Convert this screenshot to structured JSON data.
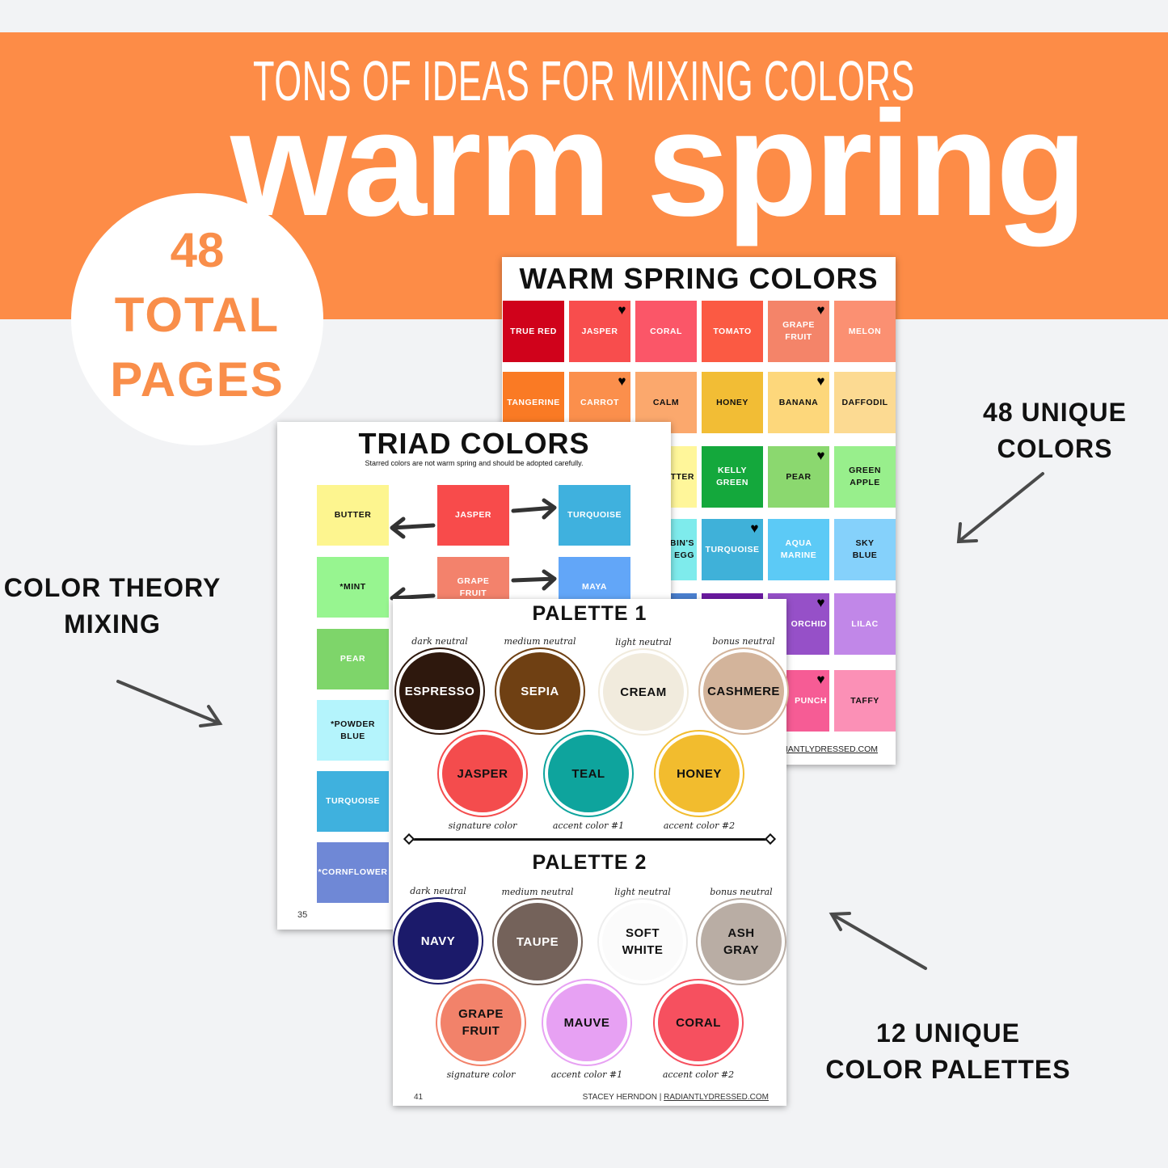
{
  "banner": {
    "tagline": "TONS OF IDEAS FOR MIXING COLORS",
    "headline": "warm spring",
    "color": "#fd8c47"
  },
  "badge": {
    "line1": "48",
    "line2": "TOTAL",
    "line3": "PAGES"
  },
  "annotations": {
    "unique_colors": "48 UNIQUE\nCOLORS",
    "theory": "COLOR THEORY\nMIXING",
    "palettes": "12 UNIQUE\nCOLOR PALETTES"
  },
  "colors_page": {
    "title": "WARM SPRING COLORS",
    "footer": "RADIANTLYDRESSED.COM",
    "cells": [
      {
        "label": "TRUE RED",
        "color": "#d0021b",
        "text": "#fff"
      },
      {
        "label": "JASPER",
        "color": "#f84d4d",
        "text": "#fff",
        "heart": true
      },
      {
        "label": "CORAL",
        "color": "#fb5668",
        "text": "#fff"
      },
      {
        "label": "TOMATO",
        "color": "#fb5a43",
        "text": "#fff"
      },
      {
        "label": "GRAPE\nFRUIT",
        "color": "#f48469",
        "text": "#fff",
        "heart": true
      },
      {
        "label": "MELON",
        "color": "#fb9072",
        "text": "#fff"
      },
      {
        "label": "TANGERINE",
        "color": "#fa7a24",
        "text": "#fff"
      },
      {
        "label": "CARROT",
        "color": "#fb8f4c",
        "text": "#fff",
        "heart": true
      },
      {
        "label": "CALM",
        "color": "#fba86d",
        "text": "#111"
      },
      {
        "label": "HONEY",
        "color": "#f2bd35",
        "text": "#111"
      },
      {
        "label": "BANANA",
        "color": "#fdd77b",
        "text": "#111",
        "heart": true
      },
      {
        "label": "DAFFODIL",
        "color": "#fcda92",
        "text": "#111"
      },
      {
        "label": "",
        "color": "#fbb07a",
        "text": "#111"
      },
      {
        "label": "",
        "color": "#fcd98a",
        "text": "#111"
      },
      {
        "label": "BUTTER",
        "color": "#fff69a",
        "text": "#111"
      },
      {
        "label": "KELLY\nGREEN",
        "color": "#14a83c",
        "text": "#fff"
      },
      {
        "label": "PEAR",
        "color": "#8bd86f",
        "text": "#111",
        "heart": true
      },
      {
        "label": "GREEN\nAPPLE",
        "color": "#98ef8c",
        "text": "#111"
      },
      {
        "label": "",
        "color": "#5ccaf6",
        "text": "#111"
      },
      {
        "label": "",
        "color": "#7ee0ec",
        "text": "#111"
      },
      {
        "label": "ROBIN'S\nEGG",
        "color": "#7eebec",
        "text": "#111"
      },
      {
        "label": "TURQUOISE",
        "color": "#3fb1d9",
        "text": "#fff",
        "heart": true
      },
      {
        "label": "AQUA\nMARINE",
        "color": "#5ccaf6",
        "text": "#fff"
      },
      {
        "label": "SKY\nBLUE",
        "color": "#85d1fb",
        "text": "#111"
      },
      {
        "label": "",
        "color": "#4a80d0",
        "text": "#fff"
      },
      {
        "label": "",
        "color": "#4a80d0",
        "text": "#fff"
      },
      {
        "label": "",
        "color": "#4a80d0",
        "text": "#fff"
      },
      {
        "label": "",
        "color": "#6a1aa0",
        "text": "#fff"
      },
      {
        "label": "ORCHID",
        "color": "#9650c8",
        "text": "#fff",
        "heart": true
      },
      {
        "label": "LILAC",
        "color": "#c187e8",
        "text": "#fff"
      },
      {
        "label": "",
        "color": "#f65c95",
        "text": "#fff"
      },
      {
        "label": "",
        "color": "#f65c95",
        "text": "#fff"
      },
      {
        "label": "",
        "color": "#f65c95",
        "text": "#fff"
      },
      {
        "label": "",
        "color": "#f65c95",
        "text": "#fff"
      },
      {
        "label": "PUNCH",
        "color": "#f65c95",
        "text": "#fff",
        "heart": true
      },
      {
        "label": "TAFFY",
        "color": "#fb90b6",
        "text": "#111"
      }
    ]
  },
  "triad_page": {
    "title": "TRIAD COLORS",
    "subtitle": "Starred colors are not warm spring and should be adopted carefully.",
    "page_number": "35",
    "cells": [
      {
        "label": "BUTTER",
        "color": "#fdf58f",
        "text": "#111",
        "col": 0,
        "row": 0
      },
      {
        "label": "JASPER",
        "color": "#f84b4b",
        "text": "#fff",
        "col": 1,
        "row": 0
      },
      {
        "label": "TURQUOISE",
        "color": "#3fb1de",
        "text": "#fff",
        "col": 2,
        "row": 0
      },
      {
        "label": "*MINT",
        "color": "#97f590",
        "text": "#111",
        "col": 0,
        "row": 1
      },
      {
        "label": "GRAPE\nFRUIT",
        "color": "#f3826c",
        "text": "#fff",
        "col": 1,
        "row": 1
      },
      {
        "label": "MAYA",
        "color": "#62a6f8",
        "text": "#fff",
        "col": 2,
        "row": 1
      },
      {
        "label": "PEAR",
        "color": "#7ed56a",
        "text": "#fff",
        "col": 0,
        "row": 2
      },
      {
        "label": "*POWDER\nBLUE",
        "color": "#b4f4fc",
        "text": "#111",
        "col": 0,
        "row": 3
      },
      {
        "label": "TURQUOISE",
        "color": "#3fb1de",
        "text": "#fff",
        "col": 0,
        "row": 4
      },
      {
        "label": "*CORNFLOWER",
        "color": "#6f88d6",
        "text": "#fff",
        "col": 0,
        "row": 5
      }
    ]
  },
  "palette_page": {
    "page_number": "41",
    "footer_name": "STACEY HERNDON | ",
    "footer_site": "RADIANTLYDRESSED.COM",
    "palettes": [
      {
        "title": "PALETTE 1",
        "swatches": [
          {
            "role": "dark neutral",
            "label": "ESPRESSO",
            "color": "#2e180d",
            "text": "#fff"
          },
          {
            "role": "medium neutral",
            "label": "SEPIA",
            "color": "#6f4013",
            "text": "#fff"
          },
          {
            "role": "light neutral",
            "label": "CREAM",
            "color": "#f1ebdd",
            "text": "#111"
          },
          {
            "role": "bonus neutral",
            "label": "CASHMERE",
            "color": "#d3b49b",
            "text": "#111"
          },
          {
            "role": "signature color",
            "label": "JASPER",
            "color": "#f44c4d",
            "text": "#111"
          },
          {
            "role": "accent color #1",
            "label": "TEAL",
            "color": "#0ea49d",
            "text": "#111"
          },
          {
            "role": "accent color #2",
            "label": "HONEY",
            "color": "#f2bc2e",
            "text": "#111"
          }
        ]
      },
      {
        "title": "PALETTE 2",
        "swatches": [
          {
            "role": "dark neutral",
            "label": "NAVY",
            "color": "#1b1a6a",
            "text": "#fff"
          },
          {
            "role": "medium neutral",
            "label": "TAUPE",
            "color": "#74625a",
            "text": "#fff"
          },
          {
            "role": "light neutral",
            "label": "SOFT\nWHITE",
            "color": "#fbfbfb",
            "text": "#111"
          },
          {
            "role": "bonus neutral",
            "label": "ASH\nGRAY",
            "color": "#b9ada4",
            "text": "#111"
          },
          {
            "role": "signature color",
            "label": "GRAPE\nFRUIT",
            "color": "#f2826a",
            "text": "#111"
          },
          {
            "role": "accent color #1",
            "label": "MAUVE",
            "color": "#e7a1f3",
            "text": "#111"
          },
          {
            "role": "accent color #2",
            "label": "CORAL",
            "color": "#f6505f",
            "text": "#111"
          }
        ]
      }
    ]
  }
}
